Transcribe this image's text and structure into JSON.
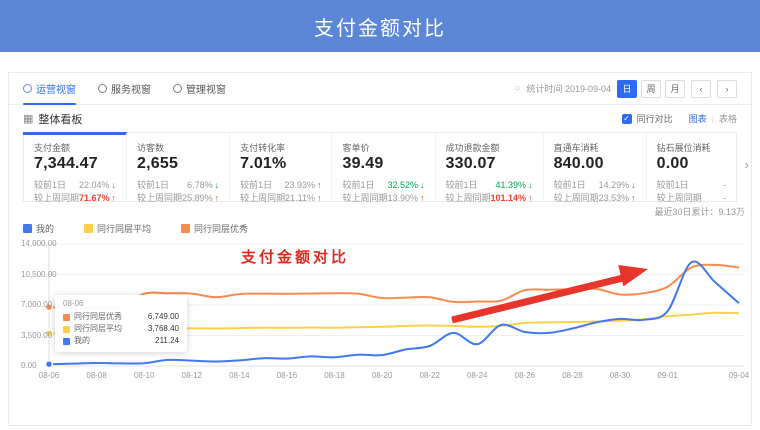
{
  "header": {
    "title": "支付金额对比"
  },
  "tabs": {
    "items": [
      {
        "label": "运营视窗",
        "active": true
      },
      {
        "label": "服务视窗",
        "active": false
      },
      {
        "label": "管理视窗",
        "active": false
      }
    ]
  },
  "toolbar": {
    "stat_time": "统计时间 2019-09-04",
    "granularity": [
      {
        "label": "日",
        "active": true
      },
      {
        "label": "周",
        "active": false
      },
      {
        "label": "月",
        "active": false
      }
    ],
    "prev": "‹",
    "next": "›"
  },
  "board": {
    "title": "整体看板",
    "peer_compare": "同行对比",
    "view_chart": "图表",
    "divider": "|",
    "view_table": "表格",
    "next_arrow": "›"
  },
  "kpis": [
    {
      "title": "支付金额",
      "value": "7,344.47",
      "selected": true,
      "deltas": [
        {
          "label": "较前1日",
          "value": "22.04%",
          "arrow": "down",
          "arrow_color": "green",
          "text_color": "gray"
        },
        {
          "label": "较上周同期",
          "value": "71.67%",
          "arrow": "up",
          "arrow_color": "red",
          "text_color": "red"
        }
      ]
    },
    {
      "title": "访客数",
      "value": "2,655",
      "selected": false,
      "deltas": [
        {
          "label": "较前1日",
          "value": "6.78%",
          "arrow": "down",
          "arrow_color": "green",
          "text_color": "gray"
        },
        {
          "label": "较上周同期",
          "value": "25.89%",
          "arrow": "up",
          "arrow_color": "red",
          "text_color": "gray"
        }
      ]
    },
    {
      "title": "支付转化率",
      "value": "7.01%",
      "selected": false,
      "deltas": [
        {
          "label": "较前1日",
          "value": "23.93%",
          "arrow": "up",
          "arrow_color": "red",
          "text_color": "gray"
        },
        {
          "label": "较上周同期",
          "value": "21.11%",
          "arrow": "up",
          "arrow_color": "red",
          "text_color": "gray"
        }
      ]
    },
    {
      "title": "客单价",
      "value": "39.49",
      "selected": false,
      "deltas": [
        {
          "label": "较前1日",
          "value": "32.52%",
          "arrow": "down",
          "arrow_color": "green",
          "text_color": "green"
        },
        {
          "label": "较上周同期",
          "value": "13.90%",
          "arrow": "up",
          "arrow_color": "red",
          "text_color": "gray"
        }
      ]
    },
    {
      "title": "成功退款金额",
      "value": "330.07",
      "selected": false,
      "deltas": [
        {
          "label": "较前1日",
          "value": "41.39%",
          "arrow": "down",
          "arrow_color": "green",
          "text_color": "green"
        },
        {
          "label": "较上周同期",
          "value": "101.14%",
          "arrow": "up",
          "arrow_color": "red",
          "text_color": "red"
        }
      ]
    },
    {
      "title": "直通车消耗",
      "value": "840.00",
      "selected": false,
      "deltas": [
        {
          "label": "较前1日",
          "value": "14.29%",
          "arrow": "down",
          "arrow_color": "green",
          "text_color": "gray"
        },
        {
          "label": "较上周同期",
          "value": "23.53%",
          "arrow": "up",
          "arrow_color": "red",
          "text_color": "gray"
        }
      ]
    },
    {
      "title": "钻石展位消耗",
      "value": "0.00",
      "selected": false,
      "deltas": [
        {
          "label": "较前1日",
          "value": "-",
          "arrow": "none",
          "arrow_color": "",
          "text_color": "gray"
        },
        {
          "label": "较上周同期",
          "value": "-",
          "arrow": "none",
          "arrow_color": "",
          "text_color": "gray"
        }
      ]
    }
  ],
  "summary": {
    "cumulative": "最近30日累计：9.13万"
  },
  "chart_data": {
    "type": "line",
    "annotation": "支付金额对比",
    "x": [
      "08-06",
      "08-07",
      "08-08",
      "08-09",
      "08-10",
      "08-11",
      "08-12",
      "08-13",
      "08-14",
      "08-15",
      "08-16",
      "08-17",
      "08-18",
      "08-19",
      "08-20",
      "08-21",
      "08-22",
      "08-23",
      "08-24",
      "08-25",
      "08-26",
      "08-27",
      "08-28",
      "08-29",
      "08-30",
      "08-31",
      "09-01",
      "09-02",
      "09-03",
      "09-04"
    ],
    "x_tick_labels": [
      "08-06",
      "08-08",
      "08-10",
      "08-12",
      "08-14",
      "08-16",
      "08-18",
      "08-20",
      "08-22",
      "08-24",
      "08-26",
      "08-28",
      "08-30",
      "09-01",
      "09-04"
    ],
    "ylim": [
      0,
      14000
    ],
    "yticks": [
      14000,
      10500,
      7000,
      3500,
      0
    ],
    "ytick_labels": [
      "14,000.00",
      "10,500.00",
      "7,000.00",
      "3,500.00",
      "0.00"
    ],
    "grid": true,
    "legend_position": "top-left",
    "series": [
      {
        "name": "我的",
        "color": "#4178ee",
        "values": [
          211.24,
          280,
          350,
          300,
          320,
          700,
          620,
          520,
          640,
          900,
          850,
          1100,
          1000,
          1300,
          1250,
          1900,
          2300,
          3800,
          2500,
          4700,
          3900,
          3800,
          4300,
          5000,
          5400,
          5300,
          6300,
          11900,
          9600,
          7200
        ]
      },
      {
        "name": "同行同层平均",
        "color": "#fbd04a",
        "values": [
          3768.4,
          3720,
          3700,
          3750,
          3800,
          4300,
          4330,
          4300,
          4350,
          4400,
          4380,
          4420,
          4400,
          4450,
          4500,
          4600,
          4650,
          4600,
          4500,
          4600,
          4950,
          5000,
          5050,
          5100,
          5200,
          5350,
          5700,
          5900,
          6100,
          6050
        ]
      },
      {
        "name": "同行同层优秀",
        "color": "#f98a4f",
        "values": [
          6749.0,
          6700,
          6680,
          6720,
          8300,
          8350,
          8300,
          7900,
          8250,
          8300,
          8280,
          8320,
          8350,
          8300,
          7800,
          7850,
          7900,
          7350,
          7400,
          7500,
          8700,
          8750,
          8800,
          8850,
          8200,
          8350,
          9100,
          11300,
          11600,
          11300
        ]
      }
    ]
  },
  "tooltip": {
    "date": "08-06",
    "rows": [
      {
        "name": "同行同层优秀",
        "color": "#f98a4f",
        "value": "6,749.00"
      },
      {
        "name": "同行同层平均",
        "color": "#fbd04a",
        "value": "3,768.40"
      },
      {
        "name": "我的",
        "color": "#4178ee",
        "value": "211.24"
      }
    ]
  },
  "colors": {
    "header": "#5b87d6",
    "accent": "#2e6bf2",
    "up_red": "#f04134",
    "down_green": "#00a854",
    "annotation_red": "#e02b20"
  }
}
